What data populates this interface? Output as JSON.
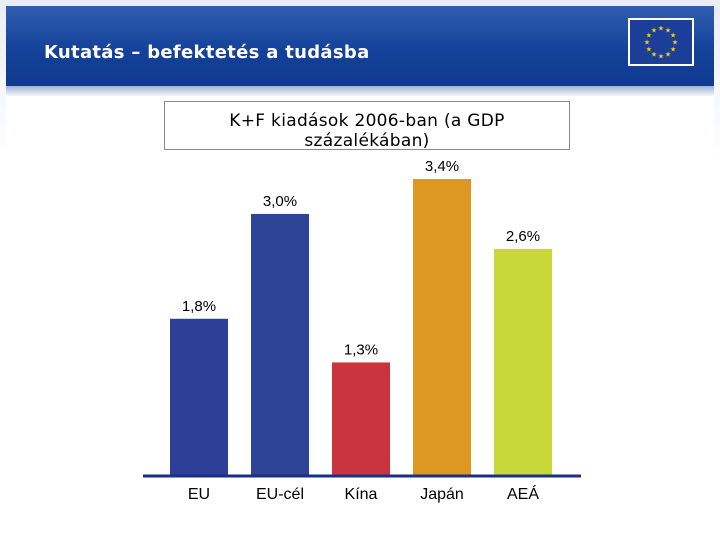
{
  "slide": {
    "title": "Kutatás – befektetés a tudásba"
  },
  "colors": {
    "header": "#14419a",
    "eu": "#2e3f98",
    "eu_cel": "#2e4496",
    "kina": "#c9353f",
    "japan": "#dc9820",
    "aea": "#c8d838"
  },
  "icons": {
    "flag": "eu-flag-icon"
  },
  "chart_data": {
    "type": "bar",
    "title": "K+F kiadások 2006-ban (a GDP százalékában)",
    "xlabel": "",
    "ylabel": "",
    "ylim": [
      0,
      3.4
    ],
    "categories": [
      "EU",
      "EU-cél",
      "Kína",
      "Japán",
      "AEÁ"
    ],
    "values": [
      1.8,
      3.0,
      1.3,
      3.4,
      2.6
    ],
    "labels": [
      "1,8%",
      "3,0%",
      "1,3%",
      "3,4%",
      "2,6%"
    ],
    "bar_colors": [
      "#2e3f98",
      "#2e4496",
      "#c9353f",
      "#dc9820",
      "#c8d838"
    ],
    "grid": false,
    "legend": "none"
  }
}
